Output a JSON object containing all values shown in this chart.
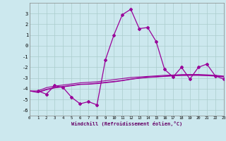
{
  "xlabel": "Windchill (Refroidissement éolien,°C)",
  "xlim": [
    0,
    23
  ],
  "ylim": [
    -6.5,
    4.0
  ],
  "yticks": [
    -6,
    -5,
    -4,
    -3,
    -2,
    -1,
    0,
    1,
    2,
    3
  ],
  "xticks": [
    0,
    1,
    2,
    3,
    4,
    5,
    6,
    7,
    8,
    9,
    10,
    11,
    12,
    13,
    14,
    15,
    16,
    17,
    18,
    19,
    20,
    21,
    22,
    23
  ],
  "bg_color": "#cce8ee",
  "line_color": "#990099",
  "grid_color": "#aacccc",
  "y_main": [
    -4.2,
    -4.5,
    -3.7,
    -3.9,
    -4.8,
    -5.4,
    -5.2,
    -5.5,
    -1.3,
    1.0,
    2.9,
    3.4,
    1.6,
    1.7,
    0.4,
    -2.2,
    -2.9,
    -2.0,
    -3.1,
    -2.0,
    -1.7,
    -2.8,
    -3.1
  ],
  "x_main": [
    1,
    2,
    3,
    4,
    5,
    6,
    7,
    8,
    9,
    10,
    11,
    12,
    13,
    14,
    15,
    16,
    17,
    18,
    19,
    20,
    21,
    22,
    23
  ],
  "y_line1": [
    -4.2,
    -4.2,
    -3.9,
    -3.75,
    -3.65,
    -3.55,
    -3.45,
    -3.4,
    -3.35,
    -3.25,
    -3.15,
    -3.05,
    -2.95,
    -2.9,
    -2.85,
    -2.8,
    -2.75,
    -2.72,
    -2.68,
    -2.67,
    -2.67,
    -2.7,
    -2.75,
    -2.82
  ],
  "y_line2": [
    -4.2,
    -4.3,
    -4.05,
    -3.88,
    -3.78,
    -3.68,
    -3.58,
    -3.55,
    -3.48,
    -3.4,
    -3.32,
    -3.22,
    -3.1,
    -3.0,
    -2.92,
    -2.88,
    -2.82,
    -2.78,
    -2.74,
    -2.73,
    -2.73,
    -2.76,
    -2.8,
    -2.88
  ],
  "y_line3": [
    -4.2,
    -4.35,
    -4.1,
    -3.92,
    -3.82,
    -3.72,
    -3.6,
    -3.58,
    -3.52,
    -3.44,
    -3.36,
    -3.25,
    -3.12,
    -3.02,
    -2.95,
    -2.9,
    -2.85,
    -2.8,
    -2.76,
    -2.75,
    -2.75,
    -2.78,
    -2.82,
    -2.9
  ]
}
